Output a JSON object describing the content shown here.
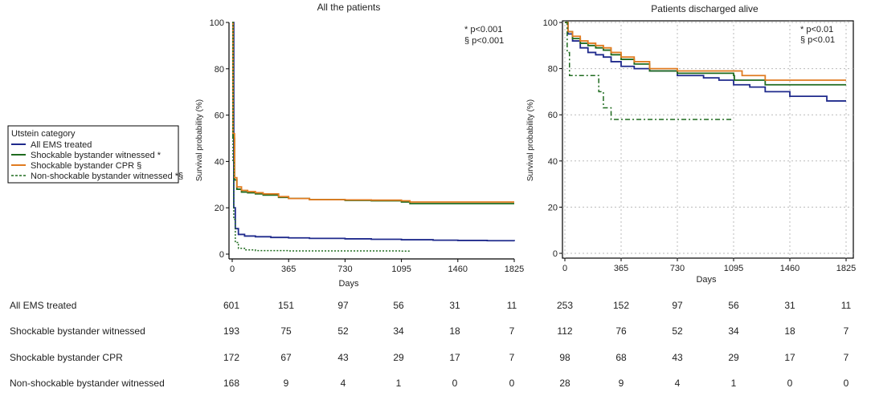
{
  "chart_data": [
    {
      "type": "line",
      "title": "All the patients",
      "xlabel": "Days",
      "ylabel": "Survival probability (%)",
      "xlim": [
        0,
        1825
      ],
      "ylim": [
        0,
        100
      ],
      "xticks": [
        0,
        365,
        730,
        1095,
        1460,
        1825
      ],
      "yticks": [
        0,
        20,
        40,
        60,
        80,
        100
      ],
      "grid": false,
      "annotations": [
        "* p<0.001",
        "§ p<0.001"
      ],
      "series": [
        {
          "name": "All EMS treated",
          "color": "#1f2a8c",
          "dash": "solid",
          "x": [
            0,
            10,
            20,
            40,
            80,
            150,
            250,
            365,
            500,
            730,
            900,
            1095,
            1300,
            1460,
            1650,
            1825
          ],
          "y": [
            100,
            20,
            11,
            8.5,
            7.8,
            7.5,
            7.2,
            7.0,
            6.8,
            6.6,
            6.4,
            6.2,
            6.0,
            5.9,
            5.8,
            5.6
          ]
        },
        {
          "name": "Shockable bystander witnessed *",
          "color": "#1f6b1f",
          "dash": "solid",
          "x": [
            0,
            5,
            15,
            30,
            60,
            100,
            150,
            200,
            300,
            365,
            500,
            730,
            900,
            1095,
            1150,
            1400,
            1825
          ],
          "y": [
            100,
            50,
            32,
            28,
            26.8,
            26.5,
            26.0,
            25.5,
            24.5,
            24.0,
            23.5,
            23.2,
            23.0,
            22.5,
            21.8,
            21.8,
            21.8
          ]
        },
        {
          "name": "Shockable bystander CPR  §",
          "color": "#e07b20",
          "dash": "solid",
          "x": [
            0,
            5,
            15,
            30,
            60,
            100,
            150,
            200,
            300,
            365,
            500,
            730,
            900,
            1095,
            1150,
            1400,
            1825
          ],
          "y": [
            100,
            52,
            33,
            29,
            27.5,
            27.0,
            26.5,
            26.0,
            24.8,
            24.0,
            23.5,
            23.4,
            23.3,
            23.0,
            22.5,
            22.5,
            22.5
          ]
        },
        {
          "name": "Non-shockable bystander witnessed *§",
          "color": "#1f6b1f",
          "dash": "dotted",
          "x": [
            0,
            5,
            10,
            20,
            40,
            80,
            150,
            365,
            730,
            1095,
            1150
          ],
          "y": [
            100,
            40,
            15,
            5,
            2.5,
            1.8,
            1.5,
            1.4,
            1.4,
            1.3,
            1.3
          ]
        }
      ]
    },
    {
      "type": "line",
      "title": "Patients discharged alive",
      "xlabel": "Days",
      "ylabel": "Survival probability (%)",
      "xlim": [
        0,
        1825
      ],
      "ylim": [
        0,
        100
      ],
      "xticks": [
        0,
        365,
        730,
        1095,
        1460,
        1825
      ],
      "yticks": [
        0,
        20,
        40,
        60,
        80,
        100
      ],
      "grid": true,
      "annotations": [
        "* p<0.01",
        "§ p<0.01"
      ],
      "series": [
        {
          "name": "All EMS treated",
          "color": "#1f2a8c",
          "dash": "solid",
          "x": [
            0,
            20,
            50,
            100,
            150,
            200,
            250,
            300,
            365,
            450,
            550,
            730,
            900,
            1000,
            1095,
            1200,
            1300,
            1460,
            1500,
            1700,
            1825
          ],
          "y": [
            100,
            95,
            92,
            89,
            87,
            86,
            85,
            83,
            81,
            80,
            79,
            77,
            76,
            75,
            73,
            72,
            70,
            68,
            68,
            66,
            66
          ]
        },
        {
          "name": "Shockable bystander witnessed *",
          "color": "#1f6b1f",
          "dash": "solid",
          "x": [
            0,
            20,
            50,
            100,
            150,
            200,
            250,
            300,
            365,
            450,
            550,
            730,
            900,
            1095,
            1100,
            1300,
            1460,
            1825
          ],
          "y": [
            100,
            96,
            93,
            91,
            90,
            89,
            88,
            86,
            84,
            82,
            79,
            78,
            78,
            77,
            75,
            73,
            73,
            73
          ]
        },
        {
          "name": "Shockable bystander CPR  §",
          "color": "#e07b20",
          "dash": "solid",
          "x": [
            0,
            20,
            50,
            100,
            150,
            200,
            250,
            300,
            365,
            450,
            550,
            730,
            900,
            1095,
            1150,
            1300,
            1460,
            1825
          ],
          "y": [
            100,
            96,
            94,
            92,
            91,
            90,
            89,
            87,
            85,
            83,
            80,
            79,
            79,
            79,
            77,
            75,
            75,
            75
          ]
        },
        {
          "name": "Non-shockable bystander witnessed *§",
          "color": "#1f6b1f",
          "dash": "dashdot",
          "x": [
            0,
            15,
            30,
            200,
            220,
            250,
            300,
            1095
          ],
          "y": [
            100,
            87,
            77,
            77,
            70,
            63,
            58,
            58
          ]
        }
      ]
    }
  ],
  "legend": {
    "title": "Utstein category",
    "entries": [
      "All EMS treated",
      "Shockable bystander witnessed *",
      "Shockable bystander CPR  §",
      "Non-shockable bystander witnessed *§"
    ]
  },
  "risk_table": {
    "rows": [
      {
        "label": "All EMS treated",
        "left": [
          "601",
          "151",
          "97",
          "56",
          "31",
          "11"
        ],
        "right": [
          "253",
          "152",
          "97",
          "56",
          "31",
          "11"
        ]
      },
      {
        "label": "Shockable bystander witnessed",
        "left": [
          "193",
          "75",
          "52",
          "34",
          "18",
          "7"
        ],
        "right": [
          "112",
          "76",
          "52",
          "34",
          "18",
          "7"
        ]
      },
      {
        "label": "Shockable bystander CPR",
        "left": [
          "172",
          "67",
          "43",
          "29",
          "17",
          "7"
        ],
        "right": [
          "98",
          "68",
          "43",
          "29",
          "17",
          "7"
        ]
      },
      {
        "label": "Non-shockable bystander witnessed",
        "left": [
          "168",
          "9",
          "4",
          "1",
          "0",
          "0"
        ],
        "right": [
          "28",
          "9",
          "4",
          "1",
          "0",
          "0"
        ]
      }
    ]
  }
}
